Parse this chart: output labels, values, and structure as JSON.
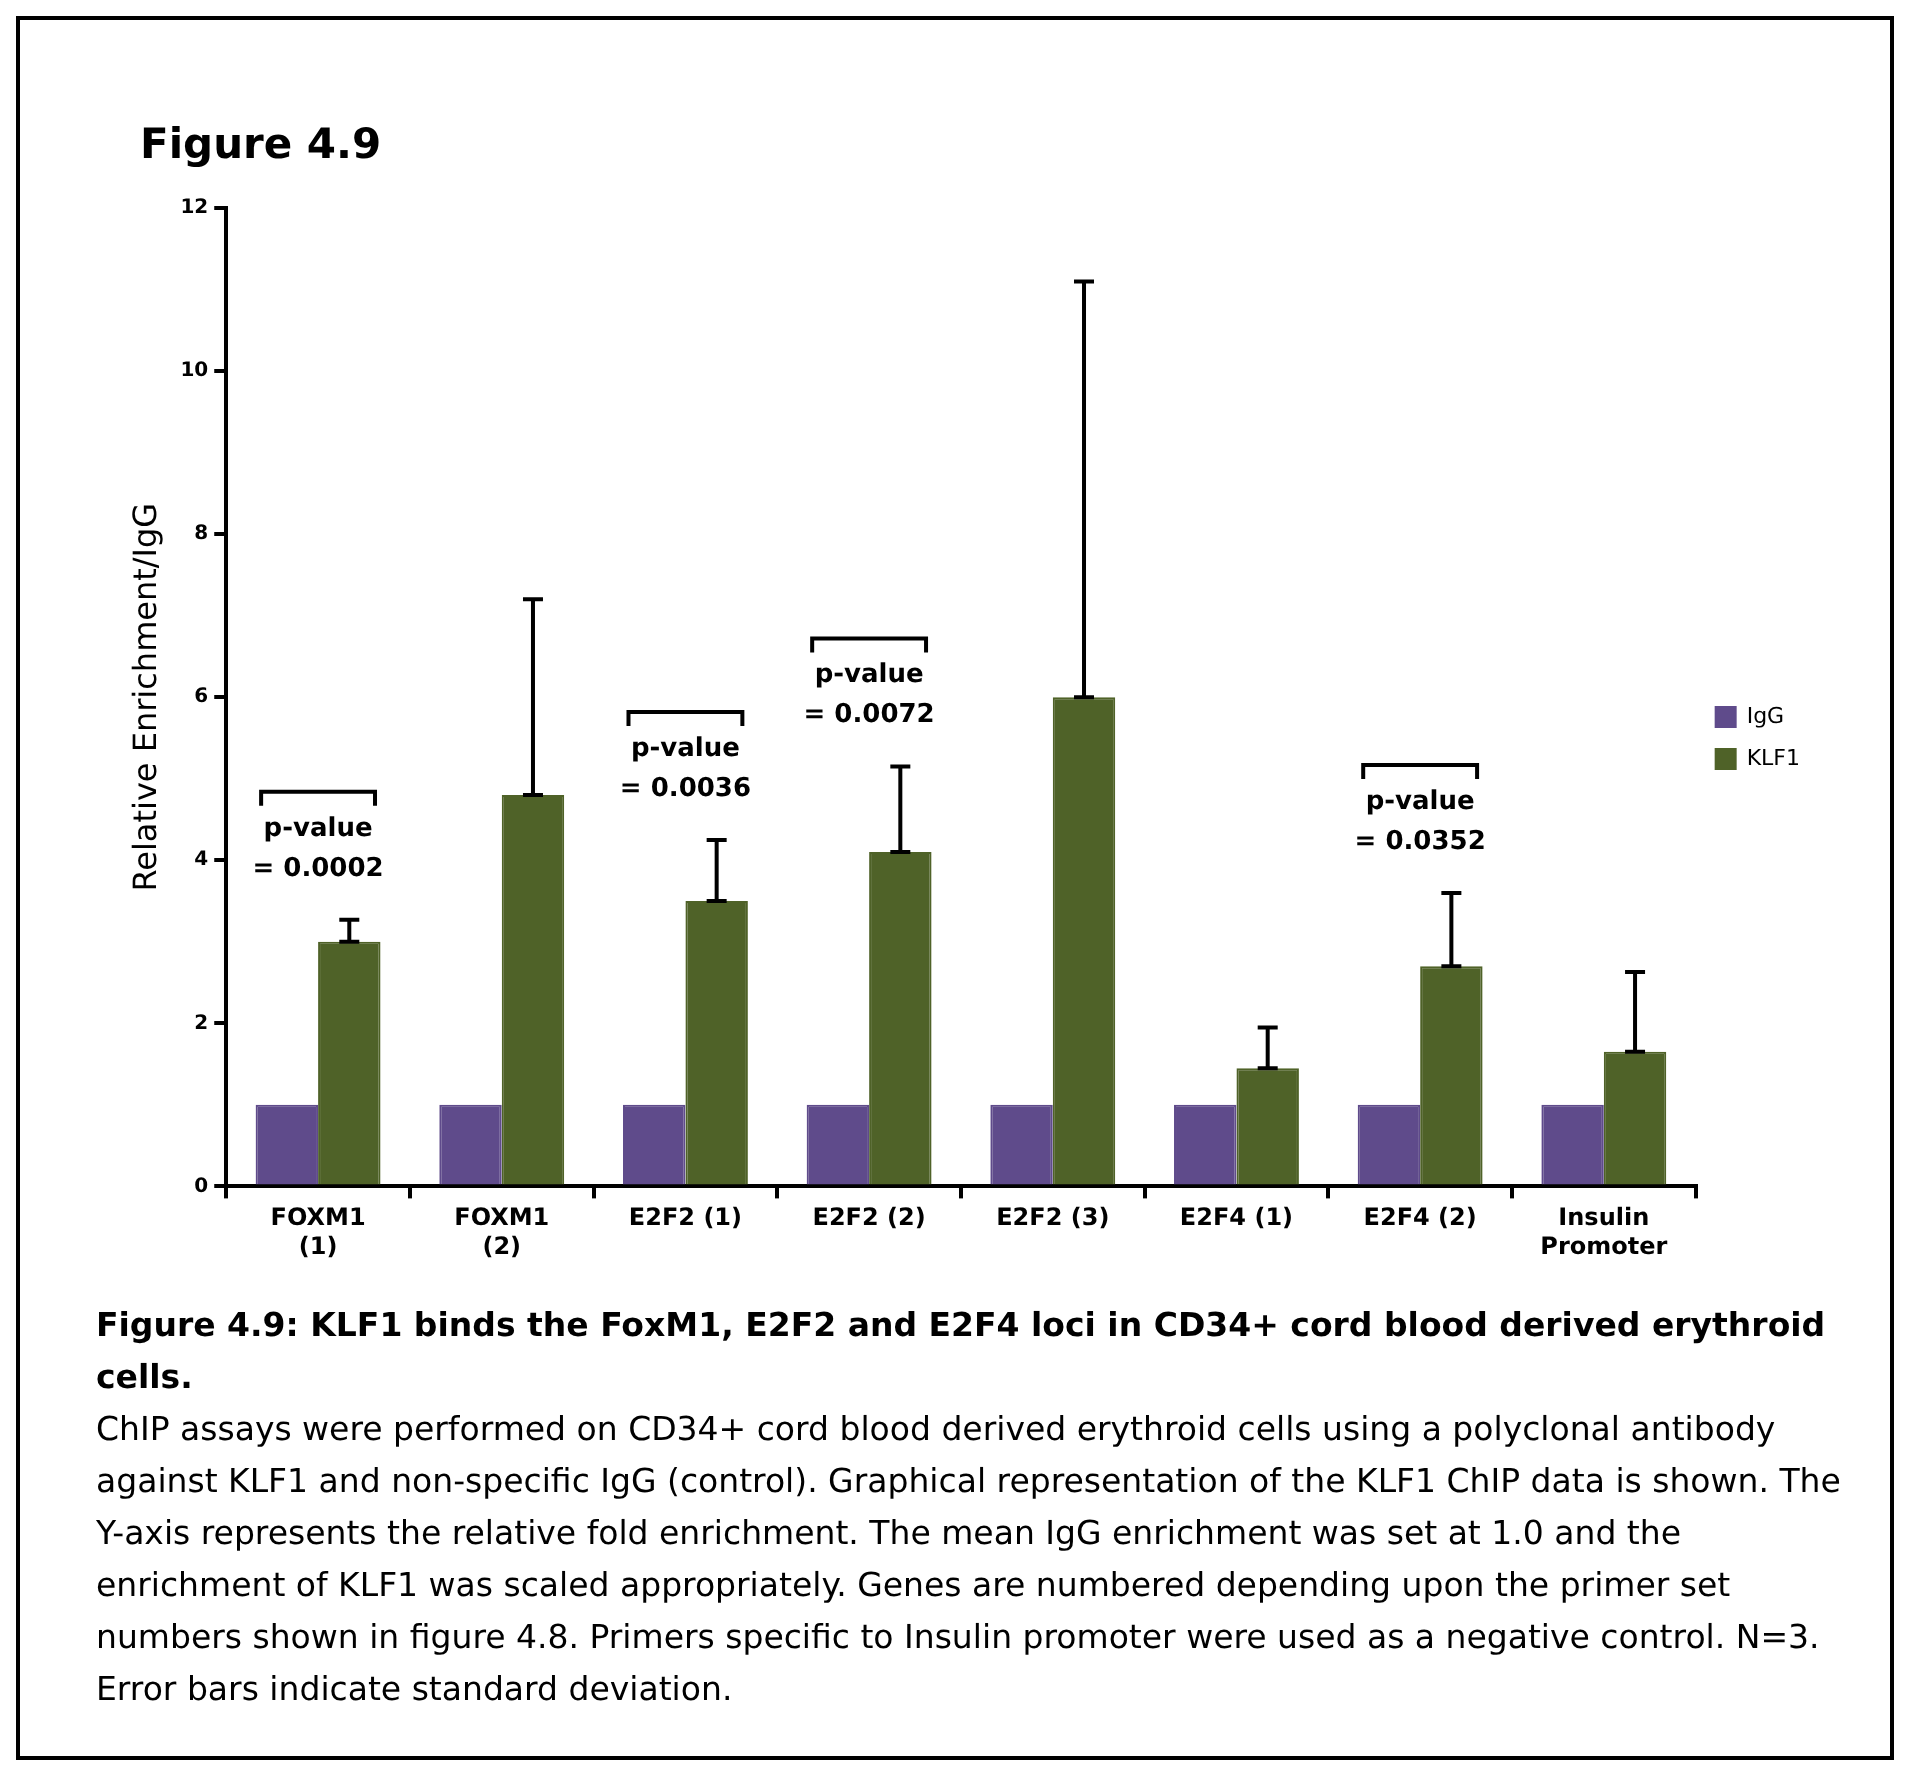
{
  "chart_data": {
    "type": "bar",
    "title": "Figure 4.9",
    "ylabel": "Relative Enrichment/IgG",
    "categories": [
      "FOXM1\n(1)",
      "FOXM1\n(2)",
      "E2F2 (1)",
      "E2F2 (2)",
      "E2F2 (3)",
      "E2F4 (1)",
      "E2F4 (2)",
      "Insulin\nPromoter"
    ],
    "series": [
      {
        "name": "IgG",
        "color": "#5f4b8b",
        "values": [
          1,
          1,
          1,
          1,
          1,
          1,
          1,
          1
        ]
      },
      {
        "name": "KLF1",
        "color": "#4f6228",
        "values": [
          3.0,
          4.8,
          3.5,
          4.1,
          6.0,
          1.45,
          2.7,
          1.65
        ],
        "errors": [
          [
            3.0,
            3.27
          ],
          [
            4.8,
            7.2
          ],
          [
            3.5,
            4.25
          ],
          [
            4.1,
            5.15
          ],
          [
            6.0,
            11.1
          ],
          [
            1.45,
            1.95
          ],
          [
            2.7,
            3.6
          ],
          [
            1.65,
            2.63
          ]
        ]
      }
    ],
    "ylim": [
      0,
      12
    ],
    "yticks": [
      0,
      2,
      4,
      6,
      8,
      10,
      12
    ],
    "grid": false,
    "legend": "right",
    "annotations": [
      "p-value\n= 0.0002",
      "p-value\n= 0.0036",
      "p-value\n= 0.0072",
      "p-value\n= 0.0352",
      "Figure 4.9: KLF1 binds the FoxM1, E2F2 and E2F4 loci in CD34+ cord blood derived erythroid cells.",
      "ChIP assays were performed on CD34+ cord blood derived erythroid cells using a polyclonal antibody against KLF1 and non-specific IgG (control). Graphical representation of the KLF1 ChIP data is shown. The Y-axis represents the relative fold enrichment. The mean IgG enrichment was set at 1.0 and the enrichment of KLF1 was scaled appropriately. Genes are numbered depending upon the primer set numbers shown in figure 4.8. Primers specific to Insulin promoter were used as a negative control. N=3. Error bars indicate standard deviation."
    ]
  }
}
